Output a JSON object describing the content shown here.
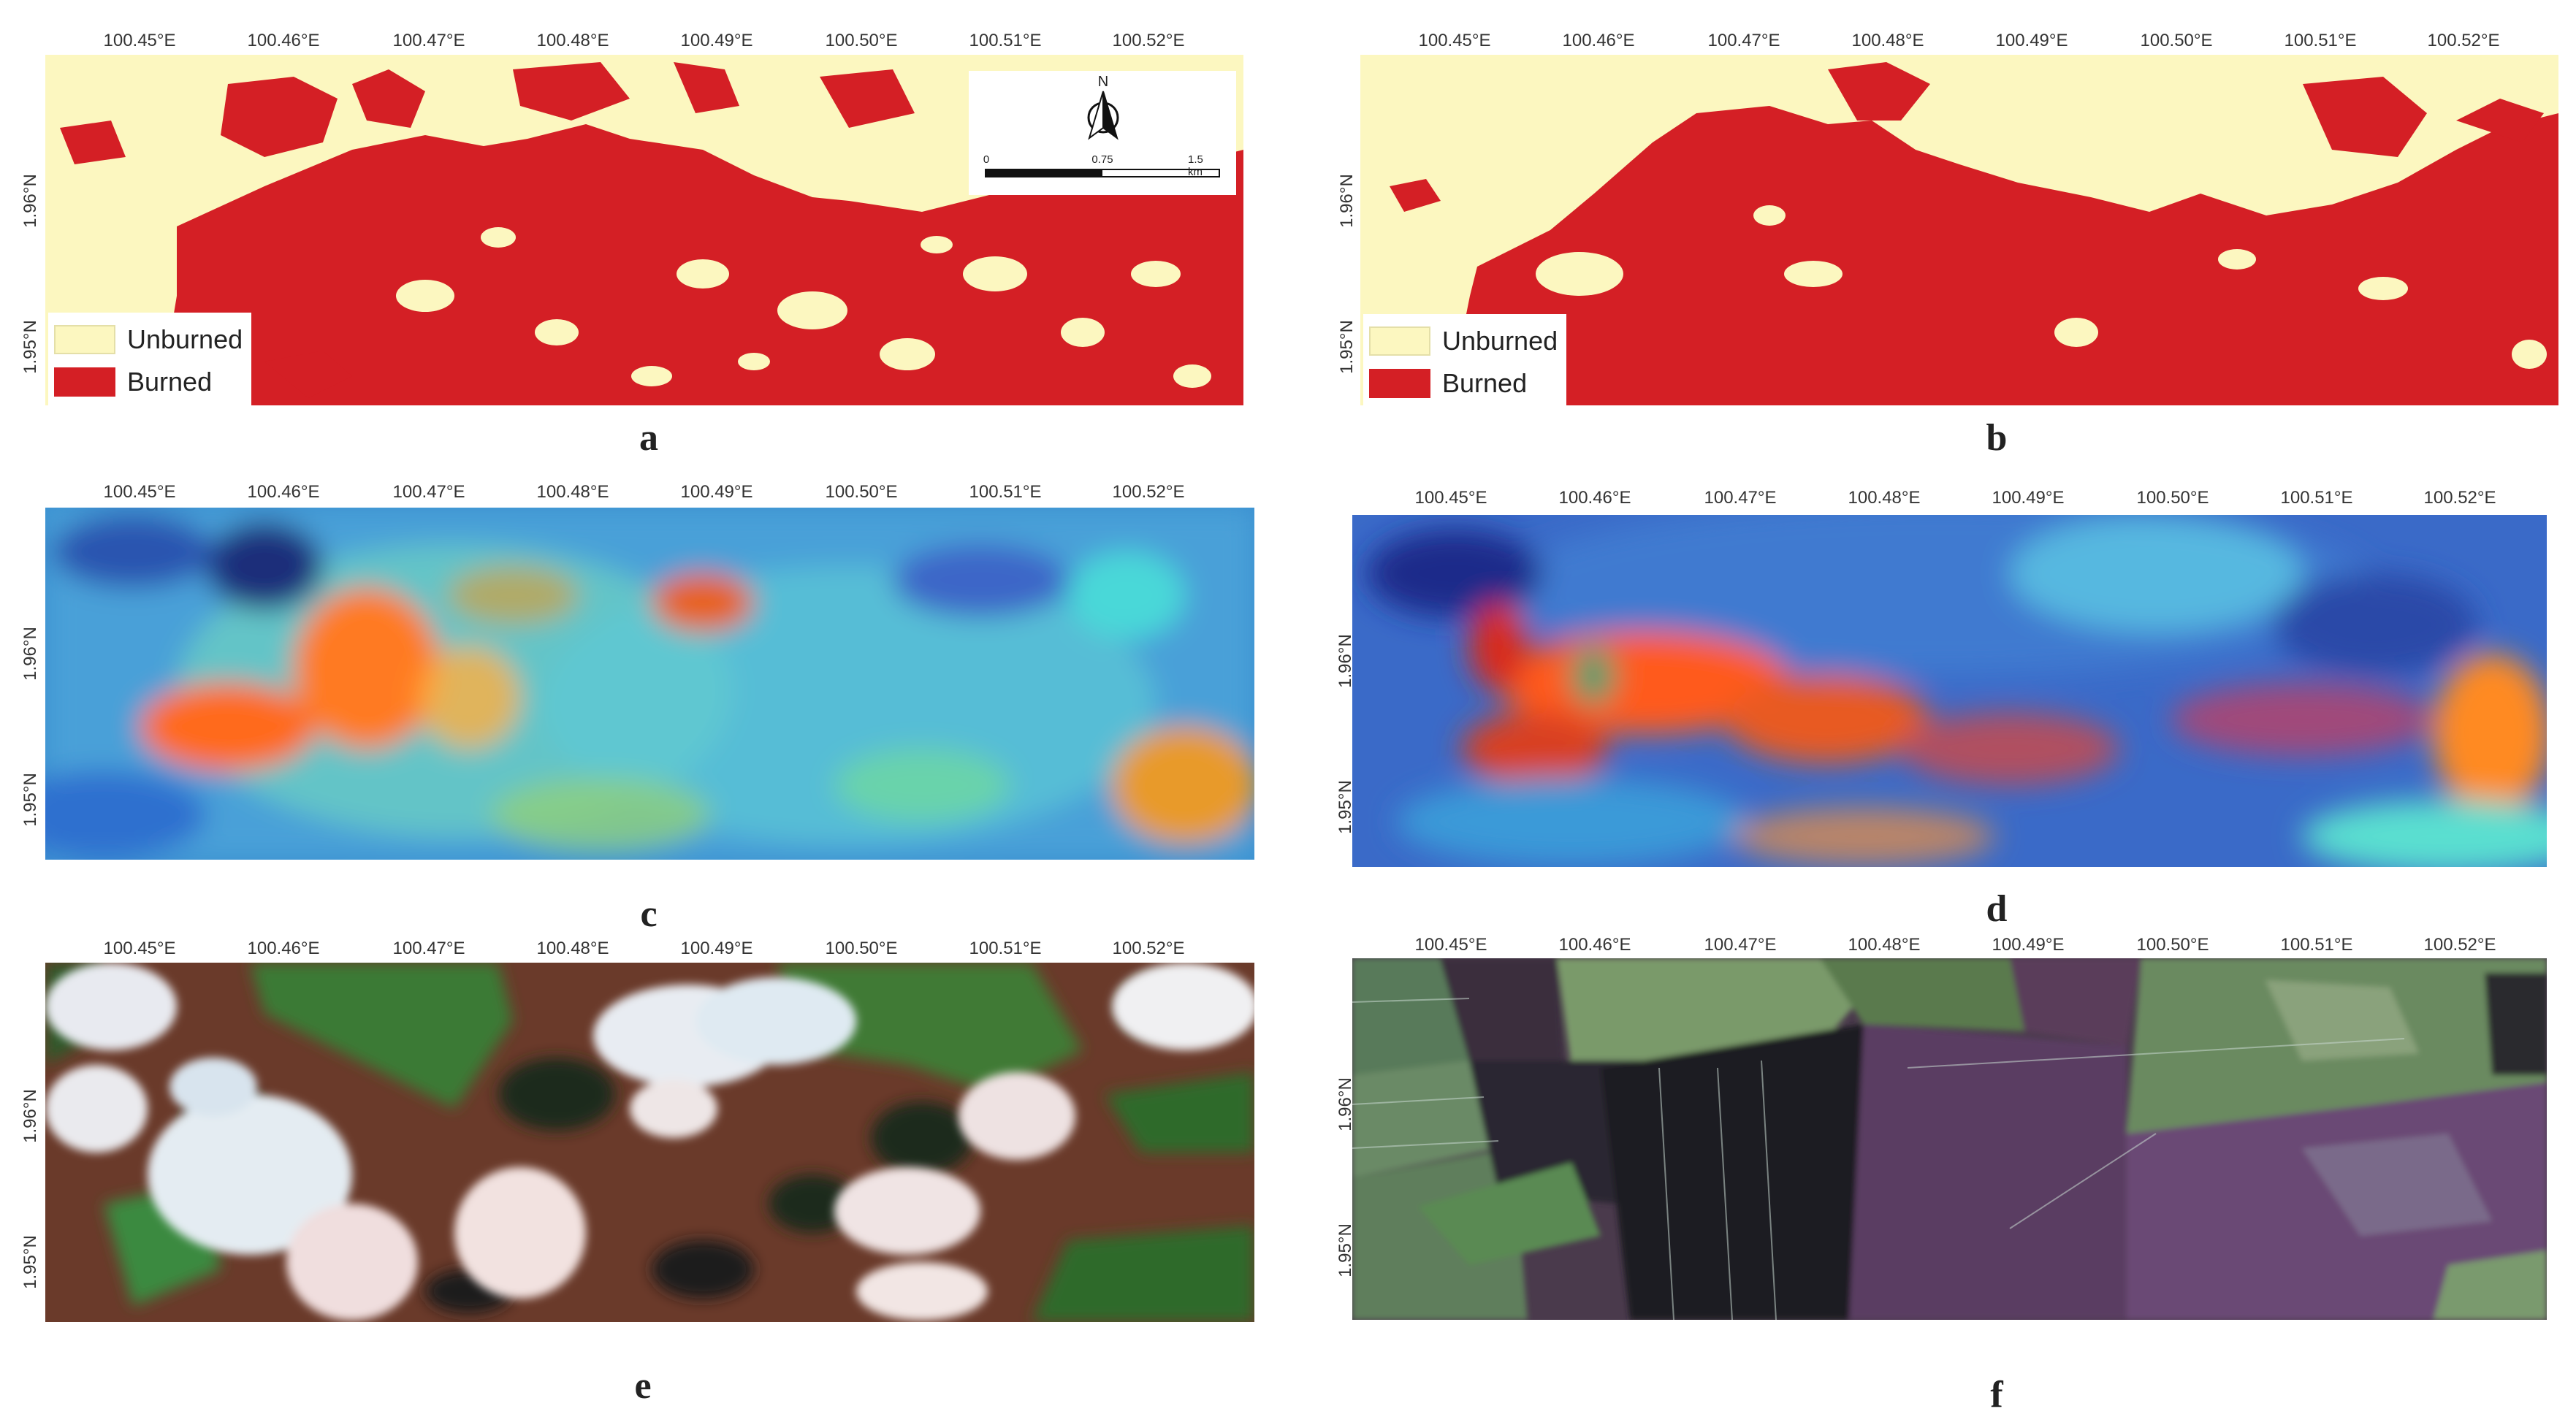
{
  "lon_ticks": [
    "100.45°E",
    "100.46°E",
    "100.47°E",
    "100.48°E",
    "100.49°E",
    "100.50°E",
    "100.51°E",
    "100.52°E"
  ],
  "lat_ticks": [
    "1.96°N",
    "1.95°N"
  ],
  "legend": {
    "unburned": "Unburned",
    "burned": "Burned"
  },
  "colors": {
    "unburned": "#fcf7c0",
    "burned": "#d41f25"
  },
  "north_arrow": {
    "label": "N",
    "icon": "north-arrow-icon"
  },
  "scalebar": {
    "labels": [
      "0",
      "0.75",
      "1.5 km"
    ]
  },
  "panels": [
    {
      "label": "a",
      "content": "burn-map"
    },
    {
      "label": "b",
      "content": "burn-map"
    },
    {
      "label": "c",
      "content": "false-color-composite"
    },
    {
      "label": "d",
      "content": "false-color-composite"
    },
    {
      "label": "e",
      "content": "satellite-rgb-cloudy"
    },
    {
      "label": "f",
      "content": "satellite-rgb-clear"
    }
  ]
}
